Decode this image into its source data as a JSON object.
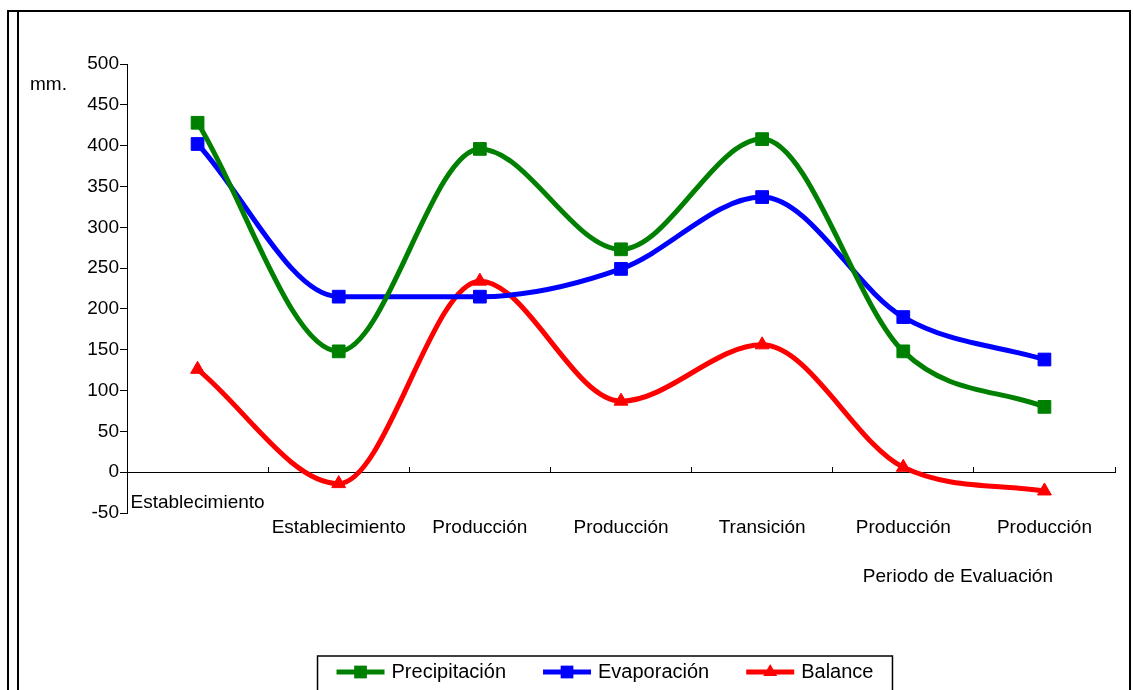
{
  "chart_data": {
    "type": "line",
    "ylabel": "mm.",
    "xlabel": "Periodo de Evaluación",
    "categories": [
      "Establecimiento",
      "Establecimiento",
      "Producción",
      "Producción",
      "Transición",
      "Producción",
      "Producción"
    ],
    "series": [
      {
        "name": "Precipitación",
        "color": "#008000",
        "marker": "square",
        "values": [
          428,
          148,
          396,
          273,
          408,
          148,
          80
        ]
      },
      {
        "name": "Evaporación",
        "color": "#0000ff",
        "marker": "square",
        "values": [
          402,
          215,
          215,
          249,
          337,
          190,
          138
        ]
      },
      {
        "name": "Balance",
        "color": "#ff0000",
        "marker": "triangle",
        "values": [
          126,
          -14,
          234,
          87,
          156,
          6,
          -23
        ]
      }
    ],
    "ylim": [
      -50,
      500
    ],
    "yticks": [
      -50,
      0,
      50,
      100,
      150,
      200,
      250,
      300,
      350,
      400,
      450,
      500
    ],
    "legend": "bottom"
  }
}
